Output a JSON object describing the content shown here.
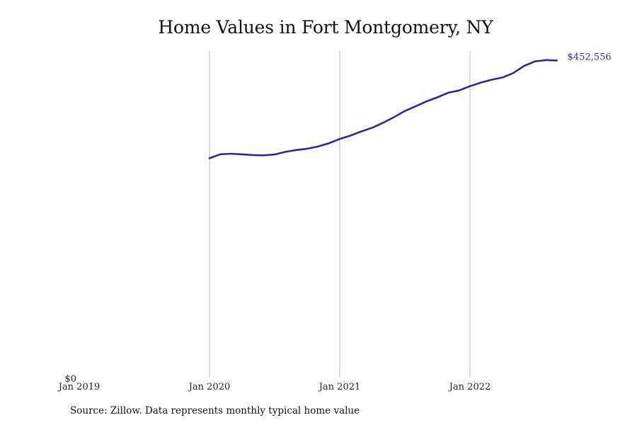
{
  "chart_data": {
    "type": "line",
    "title": "Home Values in Fort Montgomery, NY",
    "xlabel": "",
    "ylabel": "",
    "x_ticks": [
      "Jan 2019",
      "Jan 2020",
      "Jan 2021",
      "Jan 2022"
    ],
    "y_ticks": [
      "$0"
    ],
    "xlim": [
      "2019-01",
      "2022-12"
    ],
    "ylim": [
      0,
      460000
    ],
    "grid": "vertical lines at year ticks",
    "line_color": "#2e2a8c",
    "series": [
      {
        "x": [
          "2020-01",
          "2020-02",
          "2020-03",
          "2020-04",
          "2020-05",
          "2020-06",
          "2020-07",
          "2020-08",
          "2020-09",
          "2020-10",
          "2020-11",
          "2020-12",
          "2021-01",
          "2021-02",
          "2021-03",
          "2021-04",
          "2021-05",
          "2021-06",
          "2021-07",
          "2021-08",
          "2021-09",
          "2021-10",
          "2021-11",
          "2021-12",
          "2022-01",
          "2022-02",
          "2022-03",
          "2022-04",
          "2022-05",
          "2022-06",
          "2022-07",
          "2022-08",
          "2022-09"
        ],
        "values": [
          313000,
          318700,
          319500,
          318600,
          317600,
          317100,
          318400,
          322100,
          324700,
          326700,
          329700,
          334400,
          340500,
          345400,
          351300,
          356600,
          363700,
          371600,
          380400,
          387100,
          394200,
          399900,
          406500,
          409800,
          415800,
          421000,
          425100,
          428300,
          434600,
          444800,
          451300,
          453100,
          452556
        ]
      }
    ],
    "end_label": "$452,556"
  },
  "source_note": "Source: Zillow. Data represents monthly typical home value"
}
